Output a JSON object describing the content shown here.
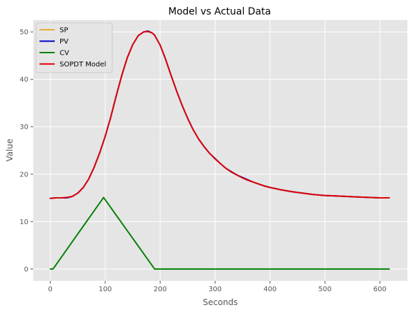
{
  "chart_data": {
    "type": "line",
    "title": "Model vs Actual Data",
    "xlabel": "Seconds",
    "ylabel": "Value",
    "xlim": [
      -31,
      650
    ],
    "ylim": [
      -2.5,
      52.5
    ],
    "xticks": [
      0,
      100,
      200,
      300,
      400,
      500,
      600
    ],
    "yticks": [
      0,
      10,
      20,
      30,
      40,
      50
    ],
    "grid": true,
    "background": "#e5e5e5",
    "legend_position": "top-left",
    "series": [
      {
        "name": "SP",
        "color": "#e5ae38",
        "x": [],
        "y": []
      },
      {
        "name": "PV",
        "color": "#0000c8",
        "x": [
          0,
          10,
          20,
          30,
          40,
          50,
          60,
          70,
          80,
          90,
          100,
          110,
          120,
          130,
          140,
          150,
          160,
          170,
          178,
          185,
          190,
          200,
          210,
          220,
          230,
          240,
          250,
          260,
          270,
          280,
          290,
          300,
          310,
          320,
          330,
          340,
          350,
          360,
          370,
          380,
          390,
          400,
          420,
          440,
          460,
          480,
          500,
          520,
          540,
          560,
          580,
          600,
          617
        ],
        "y": [
          14.9,
          15.0,
          15.0,
          15.0,
          15.3,
          16.0,
          17.2,
          19.0,
          21.5,
          24.5,
          28.0,
          32.0,
          36.5,
          40.8,
          44.5,
          47.3,
          49.2,
          50.0,
          50.2,
          49.8,
          49.3,
          47.2,
          44.2,
          40.8,
          37.5,
          34.5,
          31.8,
          29.4,
          27.4,
          25.8,
          24.4,
          23.3,
          22.2,
          21.2,
          20.5,
          19.8,
          19.3,
          18.8,
          18.3,
          17.9,
          17.5,
          17.2,
          16.7,
          16.3,
          16.0,
          15.7,
          15.5,
          15.4,
          15.3,
          15.2,
          15.1,
          15.0,
          15.0
        ]
      },
      {
        "name": "CV",
        "color": "#008000",
        "x": [
          0,
          5,
          97,
          190,
          617
        ],
        "y": [
          0,
          0,
          15.1,
          0,
          0
        ]
      },
      {
        "name": "SOPDT Model",
        "color": "#e00000",
        "x": [
          0,
          10,
          20,
          30,
          40,
          50,
          60,
          70,
          80,
          90,
          100,
          110,
          120,
          130,
          140,
          150,
          160,
          170,
          178,
          185,
          190,
          200,
          210,
          220,
          230,
          240,
          250,
          260,
          270,
          280,
          290,
          300,
          310,
          320,
          330,
          340,
          350,
          360,
          370,
          380,
          390,
          400,
          420,
          440,
          460,
          480,
          500,
          520,
          540,
          560,
          580,
          600,
          617
        ],
        "y": [
          14.9,
          15.0,
          15.0,
          15.1,
          15.3,
          16.0,
          17.2,
          19.0,
          21.5,
          24.5,
          28.0,
          32.0,
          36.5,
          40.8,
          44.5,
          47.3,
          49.2,
          50.0,
          50.1,
          49.8,
          49.3,
          47.2,
          44.2,
          40.8,
          37.5,
          34.5,
          31.8,
          29.4,
          27.4,
          25.8,
          24.4,
          23.2,
          22.2,
          21.2,
          20.4,
          19.8,
          19.2,
          18.7,
          18.3,
          17.9,
          17.5,
          17.2,
          16.7,
          16.3,
          16.0,
          15.7,
          15.5,
          15.4,
          15.3,
          15.2,
          15.1,
          15.0,
          15.0
        ]
      }
    ]
  }
}
